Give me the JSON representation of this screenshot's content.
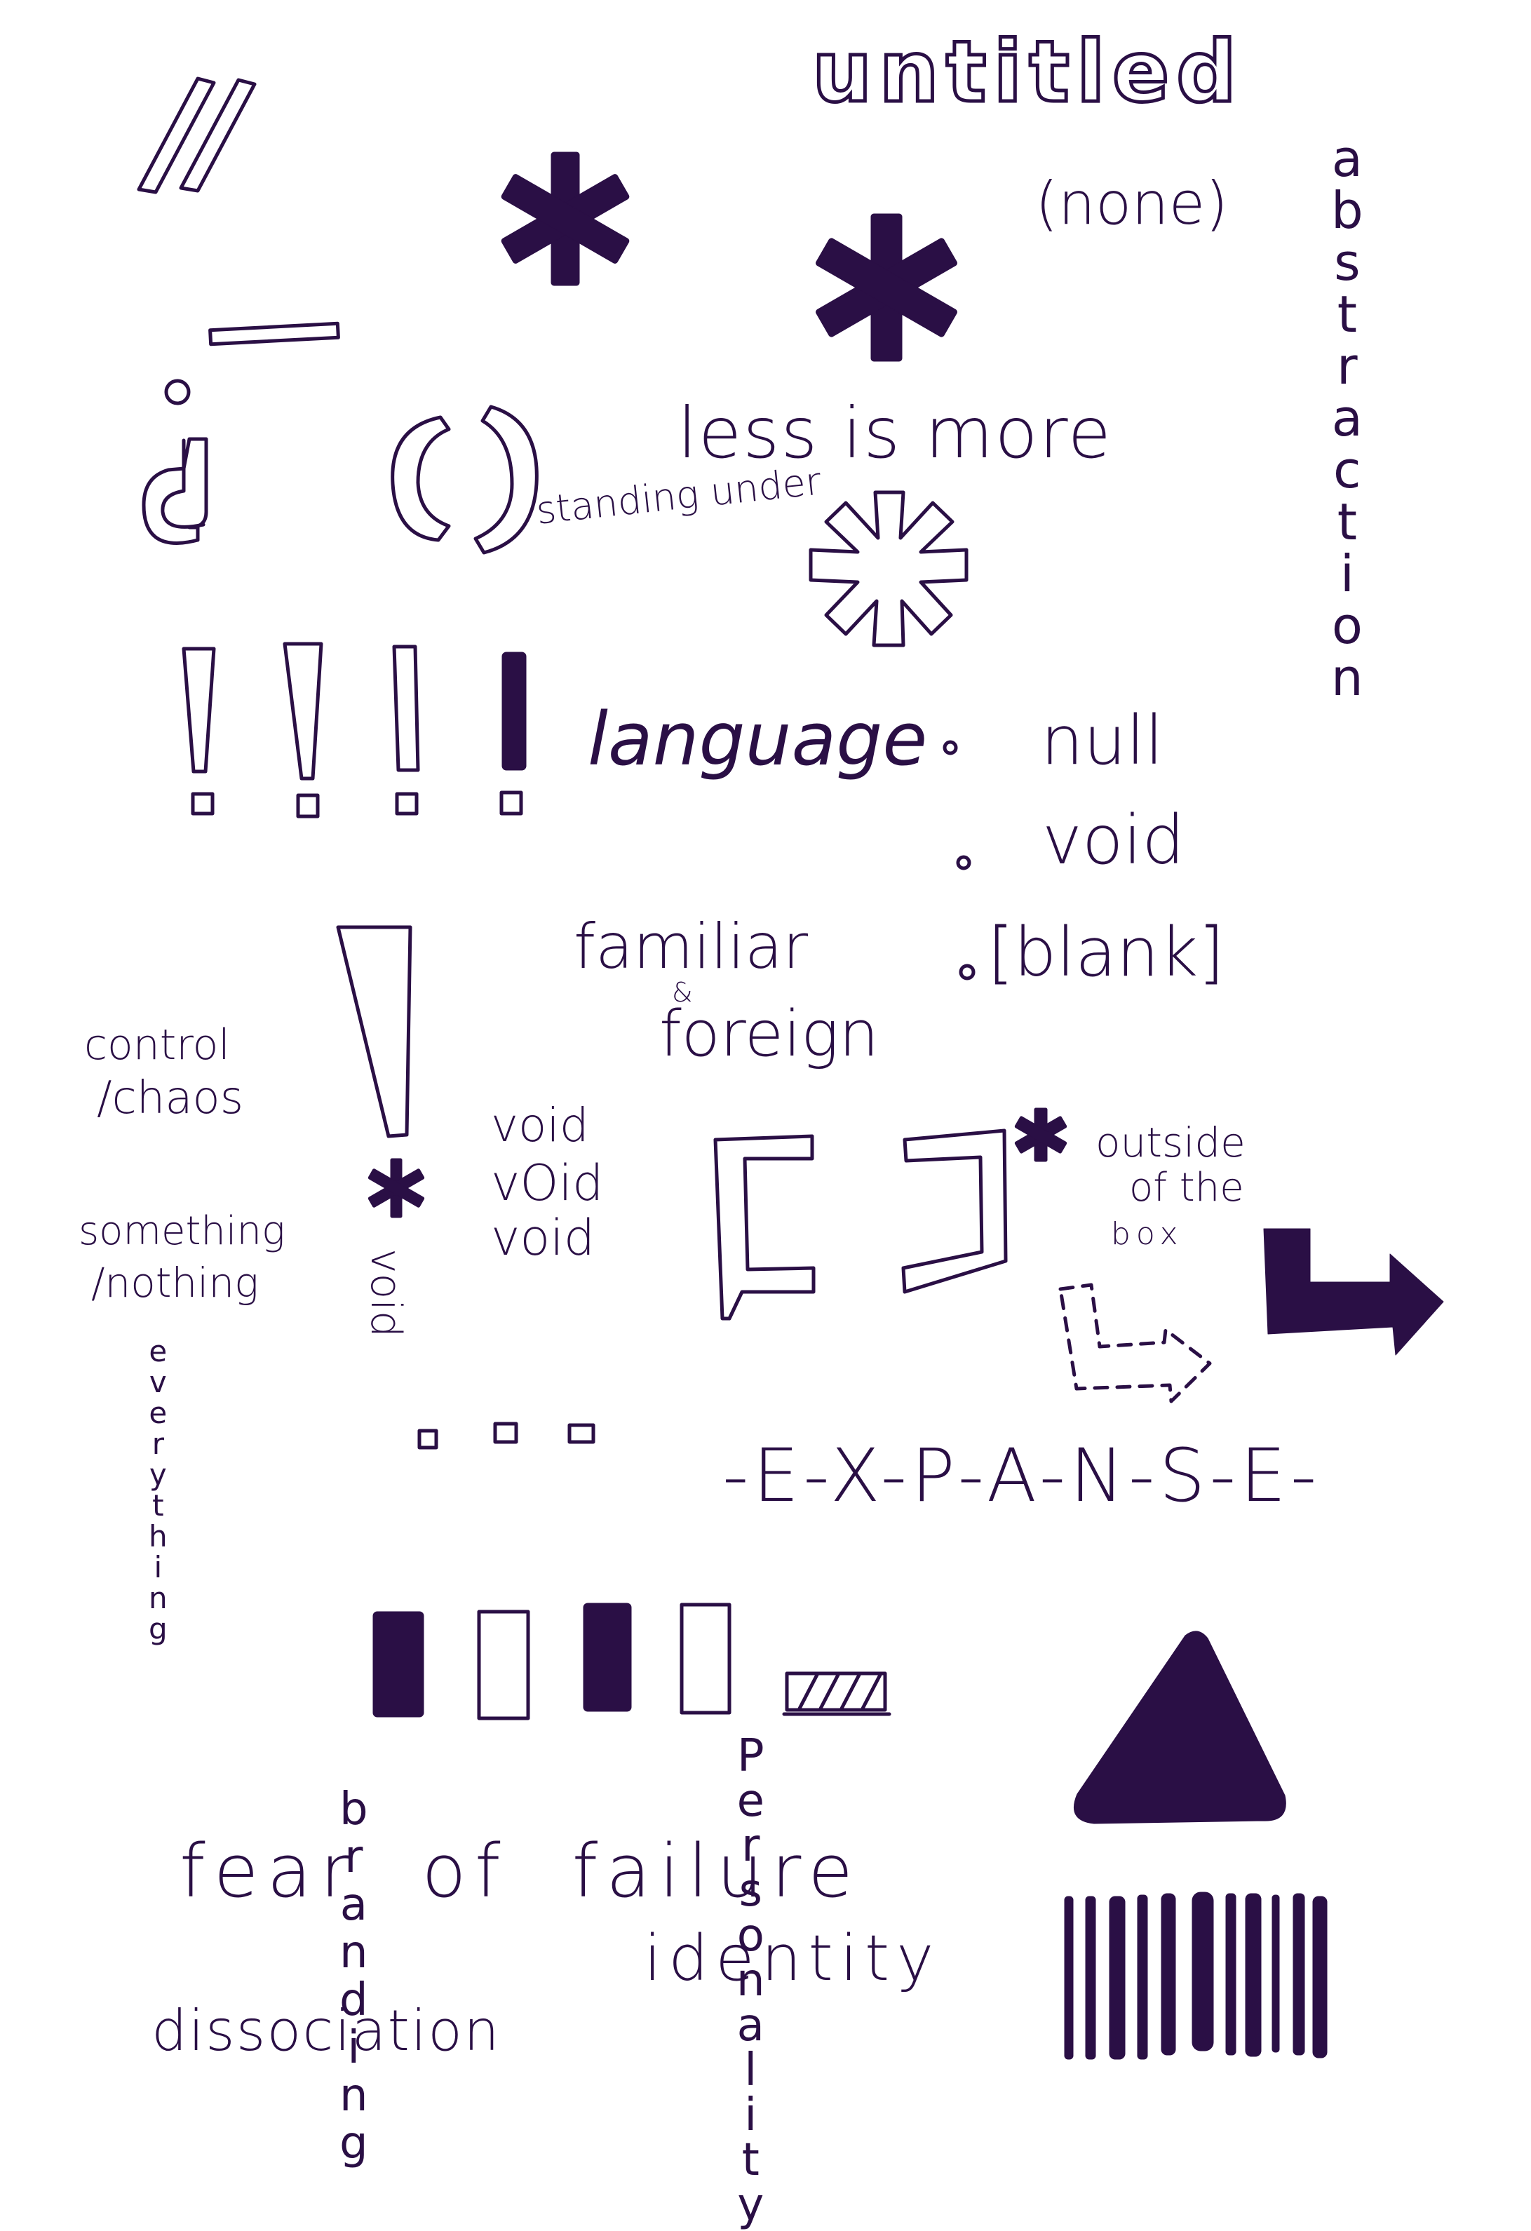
{
  "colors": {
    "ink": "#2a0f45",
    "paper": "#ffffff"
  },
  "texts": {
    "untitled": "untitled",
    "none": "(none)",
    "less_is_more": "less is more",
    "standing_under": "standing under",
    "language": "language",
    "null": "null",
    "void": "void",
    "blank": "[blank]",
    "familiar": "familiar",
    "amp": "&",
    "foreign": "foreign",
    "control": "control",
    "chaos": "/chaos",
    "void_stack": [
      "void",
      "vOid",
      "void"
    ],
    "void_vertical": "void",
    "outside": "outside",
    "of_the": "of the",
    "box": "box",
    "something": "something",
    "nothing": "/nothing",
    "expanse": "-E-X-P-A-N-S-E-",
    "fear_of_failure": "fear  of  failure",
    "identity": "identity",
    "dissociation": "dissociation"
  },
  "vertical_words": {
    "abstraction": [
      "a",
      "b",
      "s",
      "t",
      "r",
      "a",
      "c",
      "t",
      "i",
      "o",
      "n"
    ],
    "everything": [
      "e",
      "v",
      "e",
      "r",
      "y",
      "t",
      "h",
      "i",
      "n",
      "g"
    ],
    "branding": [
      "b",
      "r",
      "a",
      "n",
      "d",
      "i",
      "n",
      "g"
    ],
    "personality": [
      "P",
      "e",
      "r",
      "s",
      "o",
      "n",
      "a",
      "l",
      "i",
      "t",
      "y"
    ]
  },
  "icons": [
    "double-slash-icon",
    "asterisk-icon",
    "dash-icon",
    "inverted-question-icon",
    "parentheses-icon",
    "outlined-asterisk-icon",
    "exclamation-icon",
    "bullet-icon",
    "bracket-icon",
    "arrow-icon",
    "dashed-arrow-icon",
    "square-icon",
    "bar-icon",
    "hatched-rect-icon",
    "triangle-icon",
    "barcode-icon"
  ]
}
